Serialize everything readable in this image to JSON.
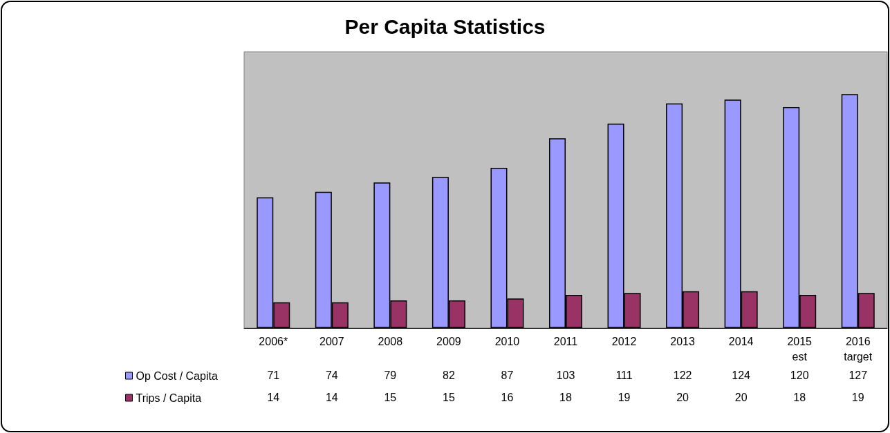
{
  "chart_data": {
    "type": "bar",
    "title": "Per Capita Statistics",
    "categories": [
      "2006*",
      "2007",
      "2008",
      "2009",
      "2010",
      "2011",
      "2012",
      "2013",
      "2014",
      "2015\nest",
      "2016\ntarget"
    ],
    "series": [
      {
        "name": "Op Cost / Capita",
        "color": "#9999ff",
        "values": [
          71,
          74,
          79,
          82,
          87,
          103,
          111,
          122,
          124,
          120,
          127
        ]
      },
      {
        "name": "Trips / Capita",
        "color": "#993366",
        "values": [
          14,
          14,
          15,
          15,
          16,
          18,
          19,
          20,
          20,
          18,
          19
        ]
      }
    ],
    "data_labels": true,
    "legend": "bottom left"
  }
}
